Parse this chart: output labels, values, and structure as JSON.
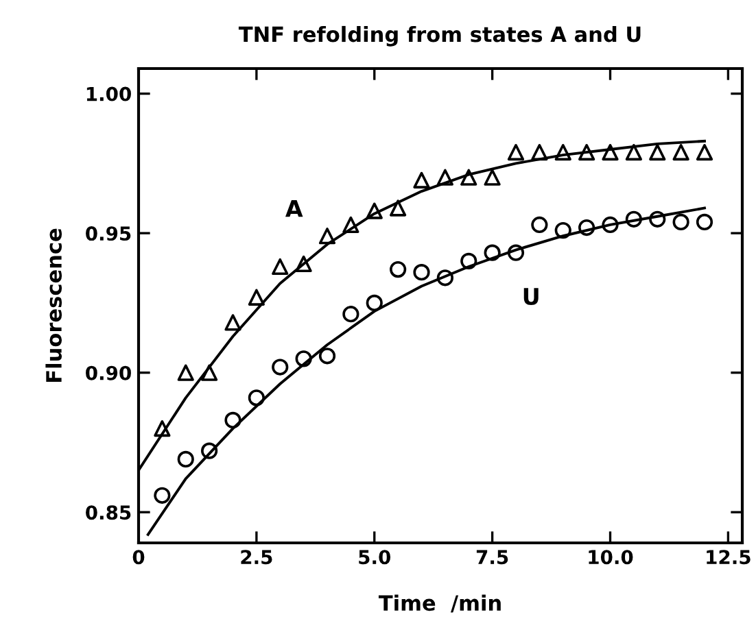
{
  "chart_data": {
    "type": "scatter",
    "title": "TNF refolding from states A and U",
    "xlabel": "Time  /min",
    "ylabel": "Fluorescence",
    "xlim": [
      0,
      12.8
    ],
    "ylim": [
      0.839,
      1.009
    ],
    "xticks": [
      0,
      2.5,
      {
        "value": 5,
        "label": "5.0"
      },
      7.5,
      {
        "value": 10,
        "label": "10.0"
      },
      12.5
    ],
    "yticks": [
      0.85,
      {
        "value": 0.9,
        "label": "0.90"
      },
      0.95,
      {
        "value": 1.0,
        "label": "1.00"
      }
    ],
    "grid": false,
    "legend": false,
    "series": [
      {
        "name": "A",
        "marker": "triangle",
        "color": "#000000",
        "x": [
          0.5,
          1,
          1.5,
          2,
          2.5,
          3,
          3.5,
          4,
          4.5,
          5,
          5.5,
          6,
          6.5,
          7,
          7.5,
          8,
          8.5,
          9,
          9.5,
          10,
          10.5,
          11,
          11.5,
          12
        ],
        "values": [
          0.88,
          0.9,
          0.9,
          0.918,
          0.927,
          0.938,
          0.939,
          0.949,
          0.953,
          0.958,
          0.959,
          0.969,
          0.97,
          0.97,
          0.97,
          0.979,
          0.979,
          0.979,
          0.979,
          0.979,
          0.979,
          0.979,
          0.979,
          0.979
        ]
      },
      {
        "name": "U",
        "marker": "circle",
        "color": "#000000",
        "x": [
          0.5,
          1,
          1.5,
          2,
          2.5,
          3,
          3.5,
          4,
          4.5,
          5,
          5.5,
          6,
          6.5,
          7,
          7.5,
          8,
          8.5,
          9,
          9.5,
          10,
          10.5,
          11,
          11.5,
          12
        ],
        "values": [
          0.856,
          0.869,
          0.872,
          0.883,
          0.891,
          0.902,
          0.905,
          0.906,
          0.921,
          0.925,
          0.937,
          0.936,
          0.934,
          0.94,
          0.943,
          0.943,
          0.953,
          0.951,
          0.952,
          0.953,
          0.955,
          0.955,
          0.954,
          0.954
        ]
      },
      {
        "type": "line",
        "color": "#000000",
        "x": [
          0,
          1,
          2,
          3,
          4,
          5,
          6,
          7,
          8,
          9,
          10,
          11,
          12
        ],
        "values": [
          0.865,
          0.891,
          0.913,
          0.932,
          0.946,
          0.957,
          0.965,
          0.971,
          0.975,
          0.978,
          0.98,
          0.982,
          0.983
        ]
      },
      {
        "type": "line",
        "color": "#000000",
        "x": [
          0.2,
          1,
          2,
          3,
          4,
          5,
          6,
          7,
          8,
          9,
          10,
          11,
          12
        ],
        "values": [
          0.842,
          0.862,
          0.88,
          0.896,
          0.91,
          0.922,
          0.931,
          0.938,
          0.944,
          0.949,
          0.953,
          0.956,
          0.959
        ]
      }
    ]
  }
}
